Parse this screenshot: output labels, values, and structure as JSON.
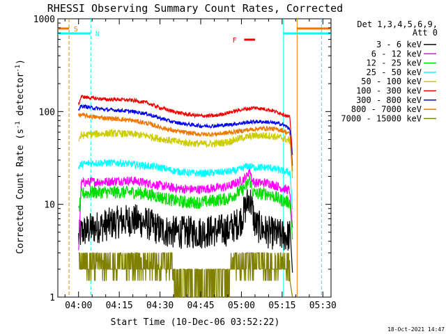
{
  "chart_data": {
    "type": "line",
    "title": "RHESSI Observing Summary Count Rates, Corrected",
    "xlabel": "Start Time (10-Dec-06 03:52:22)",
    "ylabel_main": "Corrected Count Rate (s",
    "ylabel_sup1": "-1",
    "ylabel_mid": " detector",
    "ylabel_sup2": "-1",
    "ylabel_end": ")",
    "yscale": "log",
    "ylim": [
      1,
      1000
    ],
    "xlim": [
      "03:52:22",
      "05:33:00"
    ],
    "x_ticks": [
      "04:00",
      "04:15",
      "04:30",
      "04:45",
      "05:00",
      "05:15",
      "05:30"
    ],
    "x_tick_minutes": [
      240,
      255,
      270,
      285,
      300,
      315,
      330
    ],
    "y_ticks": [
      "1",
      "10",
      "100",
      "1000"
    ],
    "y_tick_values": [
      1,
      10,
      100,
      1000
    ],
    "legend_header": [
      "Det 1,3,4,5,6,9,",
      "Att 0"
    ],
    "legend_placement": "right",
    "annotations": [
      {
        "label": "S",
        "color": "#ee7700"
      },
      {
        "label": "N",
        "color": "#00ffff"
      },
      {
        "label": "F",
        "color": "#ee0000"
      }
    ],
    "event_lines": [
      {
        "name": "saa-start",
        "minute": 236.5,
        "color": "#ee7700"
      },
      {
        "name": "night-end",
        "minute": 244.5,
        "color": "#00ffff"
      },
      {
        "name": "night-start",
        "minute": 315.5,
        "color": "#00ffff"
      },
      {
        "name": "saa-end",
        "minute": 320.5,
        "color": "#ee7700"
      },
      {
        "name": "data-end",
        "minute": 329.5,
        "color": "#00ffff"
      }
    ],
    "series": [
      {
        "name": "3 - 6 keV",
        "color": "#000000",
        "values": [
          [
            240,
            4.3
          ],
          [
            241,
            5
          ],
          [
            245,
            5.5
          ],
          [
            250,
            6
          ],
          [
            255,
            6.5
          ],
          [
            260,
            6.8
          ],
          [
            265,
            6.3
          ],
          [
            270,
            5.3
          ],
          [
            275,
            5
          ],
          [
            280,
            5
          ],
          [
            285,
            5
          ],
          [
            290,
            5.2
          ],
          [
            295,
            5.3
          ],
          [
            298,
            6
          ],
          [
            300,
            7
          ],
          [
            302,
            10
          ],
          [
            303,
            12
          ],
          [
            304,
            9
          ],
          [
            305,
            6
          ],
          [
            310,
            5
          ],
          [
            315,
            4.6
          ],
          [
            318,
            4.6
          ]
        ]
      },
      {
        "name": "6 - 12 keV",
        "color": "#ff00ff",
        "values": [
          [
            240,
            3
          ],
          [
            241,
            17
          ],
          [
            245,
            17.5
          ],
          [
            250,
            17.5
          ],
          [
            255,
            18
          ],
          [
            260,
            18
          ],
          [
            265,
            17
          ],
          [
            270,
            16
          ],
          [
            275,
            15
          ],
          [
            280,
            14.5
          ],
          [
            285,
            14.5
          ],
          [
            290,
            15
          ],
          [
            295,
            15.5
          ],
          [
            298,
            17
          ],
          [
            300,
            18
          ],
          [
            302,
            20
          ],
          [
            303,
            24
          ],
          [
            304,
            18
          ],
          [
            305,
            17
          ],
          [
            310,
            17
          ],
          [
            315,
            15
          ],
          [
            318,
            14
          ]
        ]
      },
      {
        "name": "12 - 25 keV",
        "color": "#00dd00",
        "values": [
          [
            240,
            8
          ],
          [
            241,
            13
          ],
          [
            245,
            13.5
          ],
          [
            250,
            13.5
          ],
          [
            255,
            13.5
          ],
          [
            260,
            13.5
          ],
          [
            265,
            13
          ],
          [
            270,
            12
          ],
          [
            275,
            11
          ],
          [
            280,
            10.5
          ],
          [
            285,
            10.5
          ],
          [
            290,
            11
          ],
          [
            295,
            11.5
          ],
          [
            298,
            13
          ],
          [
            300,
            14
          ],
          [
            302,
            16
          ],
          [
            303,
            19
          ],
          [
            304,
            14
          ],
          [
            305,
            13
          ],
          [
            310,
            13
          ],
          [
            315,
            11
          ],
          [
            318,
            10.5
          ]
        ]
      },
      {
        "name": "25 - 50 keV",
        "color": "#00ffff",
        "values": [
          [
            240,
            25
          ],
          [
            241,
            27
          ],
          [
            245,
            28
          ],
          [
            250,
            28
          ],
          [
            255,
            28
          ],
          [
            260,
            27
          ],
          [
            265,
            26
          ],
          [
            270,
            25
          ],
          [
            275,
            23
          ],
          [
            280,
            22
          ],
          [
            285,
            21.5
          ],
          [
            290,
            22
          ],
          [
            295,
            22.5
          ],
          [
            298,
            23
          ],
          [
            300,
            24
          ],
          [
            302,
            26
          ],
          [
            305,
            25
          ],
          [
            310,
            25
          ],
          [
            315,
            23
          ],
          [
            318,
            22
          ]
        ]
      },
      {
        "name": "50 - 100 keV",
        "color": "#cccc00",
        "values": [
          [
            240,
            50
          ],
          [
            241,
            55
          ],
          [
            245,
            57
          ],
          [
            250,
            58
          ],
          [
            255,
            58
          ],
          [
            260,
            57
          ],
          [
            265,
            55
          ],
          [
            270,
            51
          ],
          [
            275,
            48
          ],
          [
            280,
            46
          ],
          [
            285,
            45
          ],
          [
            290,
            45
          ],
          [
            295,
            47
          ],
          [
            300,
            52
          ],
          [
            305,
            55
          ],
          [
            310,
            55
          ],
          [
            315,
            52
          ],
          [
            318,
            48
          ]
        ]
      },
      {
        "name": "100 - 300 keV",
        "color": "#ee0000",
        "values": [
          [
            240,
            120
          ],
          [
            241,
            145
          ],
          [
            245,
            140
          ],
          [
            250,
            135
          ],
          [
            255,
            135
          ],
          [
            260,
            132
          ],
          [
            265,
            125
          ],
          [
            270,
            110
          ],
          [
            275,
            100
          ],
          [
            280,
            93
          ],
          [
            285,
            90
          ],
          [
            290,
            90
          ],
          [
            295,
            97
          ],
          [
            300,
            105
          ],
          [
            305,
            110
          ],
          [
            310,
            105
          ],
          [
            315,
            95
          ],
          [
            318,
            85
          ]
        ]
      },
      {
        "name": "300 - 800 keV",
        "color": "#0000ee",
        "values": [
          [
            240,
            105
          ],
          [
            241,
            115
          ],
          [
            245,
            110
          ],
          [
            250,
            105
          ],
          [
            255,
            103
          ],
          [
            260,
            100
          ],
          [
            265,
            95
          ],
          [
            270,
            85
          ],
          [
            275,
            77
          ],
          [
            280,
            73
          ],
          [
            285,
            70
          ],
          [
            290,
            70
          ],
          [
            295,
            72
          ],
          [
            300,
            75
          ],
          [
            305,
            78
          ],
          [
            310,
            77
          ],
          [
            315,
            73
          ],
          [
            318,
            65
          ]
        ]
      },
      {
        "name": "800 - 7000 keV",
        "color": "#ee7700",
        "values": [
          [
            240,
            90
          ],
          [
            241,
            92
          ],
          [
            245,
            88
          ],
          [
            250,
            85
          ],
          [
            255,
            83
          ],
          [
            260,
            80
          ],
          [
            265,
            75
          ],
          [
            270,
            68
          ],
          [
            275,
            62
          ],
          [
            280,
            59
          ],
          [
            285,
            57
          ],
          [
            290,
            57
          ],
          [
            295,
            59
          ],
          [
            300,
            62
          ],
          [
            305,
            65
          ],
          [
            310,
            66
          ],
          [
            315,
            63
          ],
          [
            318,
            57
          ]
        ]
      },
      {
        "name": "7000 - 15000 keV",
        "color": "#808000",
        "values": [
          [
            240,
            2
          ],
          [
            241,
            2
          ],
          [
            245,
            2
          ],
          [
            247,
            2.5
          ],
          [
            250,
            2.5
          ],
          [
            255,
            2.8
          ],
          [
            260,
            3
          ],
          [
            265,
            2.5
          ],
          [
            270,
            2.2
          ],
          [
            275,
            1.5
          ],
          [
            280,
            1.5
          ],
          [
            285,
            1.6
          ],
          [
            290,
            1.5
          ],
          [
            295,
            2.5
          ],
          [
            300,
            3
          ],
          [
            305,
            3
          ],
          [
            310,
            3
          ],
          [
            315,
            2.7
          ],
          [
            318,
            2.5
          ]
        ]
      }
    ],
    "flare_marker_minutes": [
      301,
      305
    ]
  },
  "footer": {
    "timestamp": "18-Oct-2021 14:47"
  }
}
